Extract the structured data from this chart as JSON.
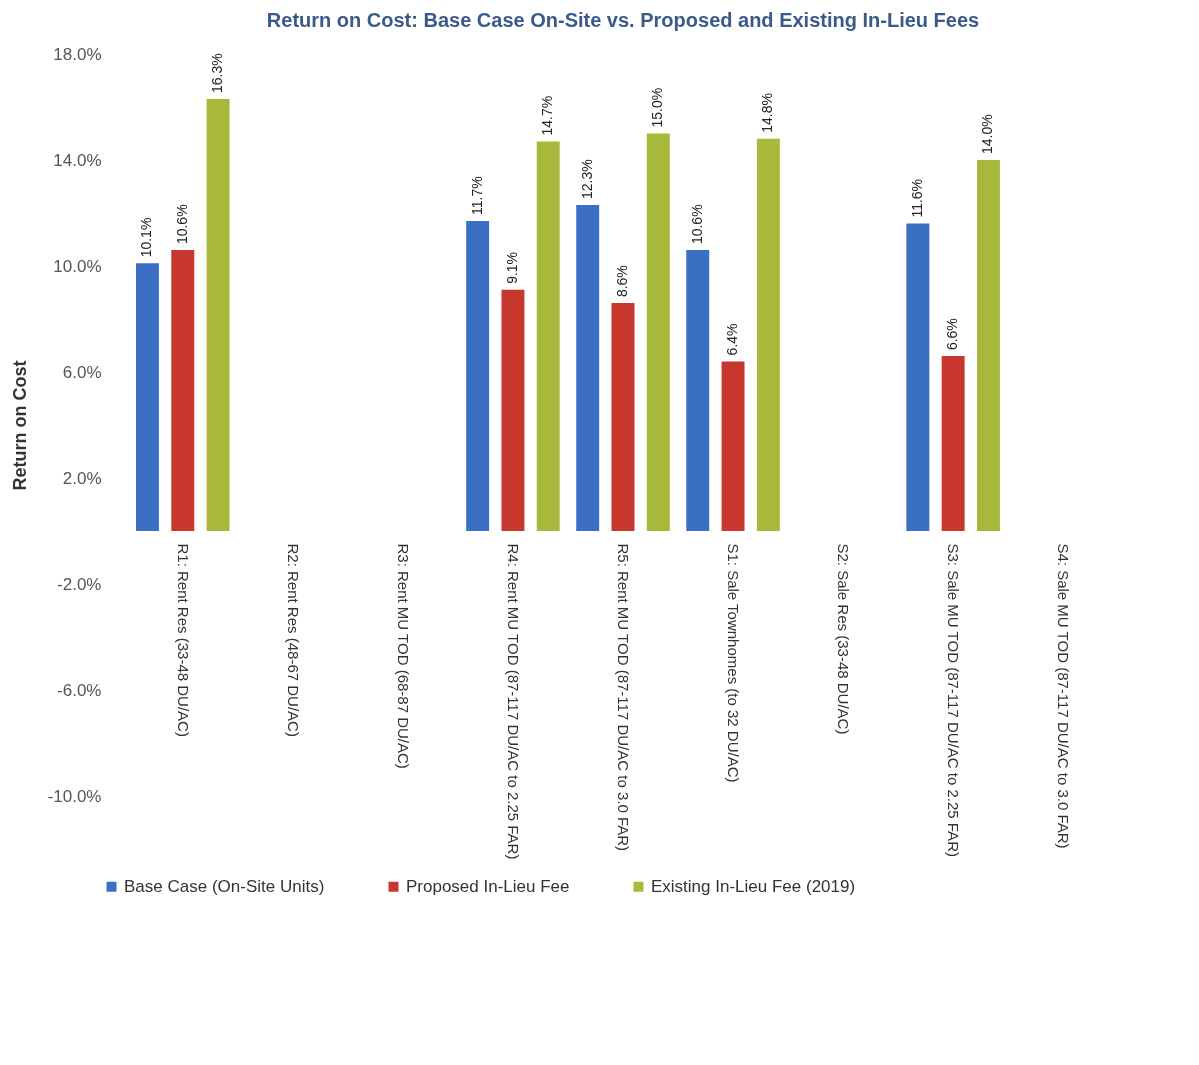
{
  "chart_data": {
    "type": "bar",
    "title": "Return on Cost: Base Case On-Site vs. Proposed and Existing In-Lieu Fees",
    "ylabel": "Return on Cost",
    "categories": [
      "R1: Rent Res (33-48 DU/AC)",
      "R2: Rent Res (48-67 DU/AC)",
      "R3: Rent MU TOD (68-87 DU/AC)",
      "R4: Rent MU TOD (87-117 DU/AC to 2.25 FAR)",
      "R5: Rent MU TOD (87-117 DU/AC to 3.0 FAR)",
      "S1: Sale Townhomes (to 32 DU/AC)",
      "S2: Sale Res (33-48 DU/AC)",
      "S3: Sale MU TOD (87-117 DU/AC to 2.25 FAR)",
      "S4: Sale MU TOD (87-117 DU/AC to 3.0 FAR)"
    ],
    "series": [
      {
        "name": "Base Case (On-Site Units)",
        "color": "#3a6fc4",
        "values": [
          10.1,
          null,
          null,
          11.7,
          12.3,
          10.6,
          null,
          11.6,
          null
        ],
        "value_labels": [
          "10.1%",
          null,
          null,
          "11.7%",
          "12.3%",
          "10.6%",
          null,
          "11.6%",
          null
        ]
      },
      {
        "name": "Proposed In-Lieu Fee",
        "color": "#c8372d",
        "values": [
          10.6,
          null,
          null,
          9.1,
          8.6,
          6.4,
          null,
          6.6,
          null
        ],
        "value_labels": [
          "10.6%",
          null,
          null,
          "9.1%",
          "8.6%",
          "6.4%",
          null,
          "6.6%",
          null
        ]
      },
      {
        "name": "Existing In-Lieu Fee (2019)",
        "color": "#a8b83a",
        "values": [
          16.3,
          null,
          null,
          14.7,
          15.0,
          14.8,
          null,
          14.0,
          null
        ],
        "value_labels": [
          "16.3%",
          null,
          null,
          "14.7%",
          "15.0%",
          "14.8%",
          null,
          "14.0%",
          null
        ]
      }
    ],
    "ylim": [
      -10,
      18
    ],
    "yticks": [
      {
        "value": 18,
        "label": "18.0%"
      },
      {
        "value": 14,
        "label": "14.0%"
      },
      {
        "value": 10,
        "label": "10.0%"
      },
      {
        "value": 6,
        "label": "6.0%"
      },
      {
        "value": 2,
        "label": "2.0%"
      },
      {
        "value": -2,
        "label": "-2.0%"
      },
      {
        "value": -6,
        "label": "-6.0%"
      },
      {
        "value": -10,
        "label": "-10.0%"
      }
    ],
    "grid": false,
    "legend": "bottom"
  }
}
